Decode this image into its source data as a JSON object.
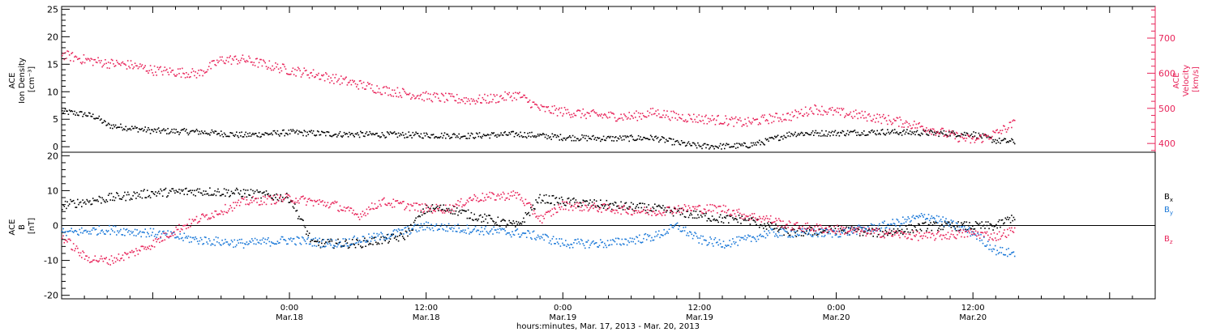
{
  "x_title": "hours:minutes, Mar. 17, 2013 - Mar. 20, 2013",
  "x_ticks": [
    {
      "time": "0:00",
      "date": "Mar.18",
      "hour": 24
    },
    {
      "time": "12:00",
      "date": "Mar.18",
      "hour": 36
    },
    {
      "time": "0:00",
      "date": "Mar.19",
      "hour": 48
    },
    {
      "time": "12:00",
      "date": "Mar.19",
      "hour": 60
    },
    {
      "time": "0:00",
      "date": "Mar.20",
      "hour": 72
    },
    {
      "time": "12:00",
      "date": "Mar.20",
      "hour": 84
    }
  ],
  "colors": {
    "black": "#000000",
    "pink": "#e8245a",
    "blue": "#1a78d8"
  },
  "chart_data": [
    {
      "type": "scatter",
      "panel": "top",
      "xlim_hours": [
        4,
        100
      ],
      "data_end_hour": 87.7,
      "left_axis": {
        "label_lines": [
          "ACE",
          "Ion Density",
          "[cm⁻³]"
        ],
        "ylim": [
          -1,
          25.5
        ],
        "ticks": [
          "0",
          "5",
          "10",
          "15",
          "20",
          "25"
        ],
        "color": "#000000"
      },
      "right_axis": {
        "label_lines": [
          "ACE",
          "Velocity",
          "[km/s]"
        ],
        "ylim": [
          375,
          790
        ],
        "ticks": [
          "400",
          "500",
          "600",
          "700"
        ],
        "color": "#e8245a"
      },
      "series": [
        {
          "axis": "left",
          "color": "#000000",
          "hours": [
            4,
            6,
            7,
            8,
            10,
            12,
            16,
            20,
            24,
            28,
            32,
            36,
            40,
            44,
            48,
            52,
            56,
            58,
            60,
            62,
            64,
            65.5,
            68,
            72,
            76,
            80,
            84,
            86,
            87.7
          ],
          "values": [
            6.5,
            6,
            5.5,
            4,
            3.5,
            3,
            2.8,
            2.2,
            2.7,
            2.4,
            2.3,
            2.2,
            2.1,
            2.4,
            1.8,
            1.6,
            1.7,
            0.8,
            0.2,
            0.2,
            0.3,
            0.9,
            2.5,
            2.6,
            2.8,
            2.6,
            2.4,
            1.2,
            1.0
          ]
        },
        {
          "axis": "right",
          "color": "#e8245a",
          "hours": [
            4,
            6,
            8,
            10,
            12,
            14,
            16,
            18,
            20,
            22,
            24,
            26,
            28,
            30,
            32,
            34,
            36,
            38,
            40,
            42,
            44,
            46,
            48,
            50,
            52,
            54,
            56,
            58,
            60,
            62,
            64,
            66,
            68,
            70,
            72,
            74,
            76,
            78,
            80,
            82,
            84,
            86,
            87.7
          ],
          "values": [
            655,
            640,
            630,
            625,
            610,
            605,
            600,
            640,
            640,
            625,
            610,
            600,
            585,
            570,
            555,
            545,
            535,
            530,
            525,
            530,
            540,
            500,
            492,
            485,
            480,
            478,
            490,
            478,
            472,
            468,
            460,
            472,
            480,
            500,
            490,
            482,
            472,
            460,
            445,
            425,
            410,
            430,
            460
          ]
        }
      ]
    },
    {
      "type": "scatter",
      "panel": "bottom",
      "xlim_hours": [
        4,
        100
      ],
      "data_end_hour": 87.7,
      "y_axis": {
        "label_lines": [
          "ACE",
          "B",
          "[nT]"
        ],
        "ylim": [
          -21,
          21
        ],
        "ticks": [
          "-20",
          "-10",
          "0",
          "10",
          "20"
        ]
      },
      "series": [
        {
          "name": "Bx",
          "color": "#000000",
          "hours": [
            4,
            8,
            12,
            16,
            20,
            24,
            26,
            30,
            34,
            36,
            38,
            40,
            44,
            46,
            48,
            52,
            56,
            58,
            60,
            62,
            64,
            66,
            68,
            72,
            76,
            80,
            84,
            86,
            87.7
          ],
          "values": [
            6,
            8,
            9.5,
            10,
            9.5,
            8,
            -5,
            -5,
            -3,
            5,
            5,
            3,
            0,
            8,
            7,
            6,
            5,
            4,
            3,
            2,
            2,
            0,
            -2,
            -1,
            -2,
            0,
            0,
            0,
            3
          ]
        },
        {
          "name": "By",
          "color": "#1a78d8",
          "hours": [
            4,
            8,
            12,
            16,
            20,
            24,
            28,
            32,
            36,
            40,
            44,
            46,
            48,
            52,
            56,
            58,
            60,
            62,
            64,
            66,
            68,
            72,
            76,
            80,
            84,
            86,
            87.7
          ],
          "values": [
            -2,
            -1,
            -2,
            -4,
            -5,
            -4,
            -5,
            -3,
            0,
            -1,
            -2,
            -3,
            -5,
            -5,
            -3,
            0,
            -4,
            -5,
            -4,
            -2,
            -2,
            -2,
            0,
            3,
            -2,
            -7,
            -8
          ]
        },
        {
          "name": "Bz",
          "color": "#e8245a",
          "hours": [
            4,
            6,
            8,
            10,
            12,
            14,
            16,
            20,
            24,
            28,
            30,
            32,
            34,
            36,
            38,
            40,
            44,
            46,
            48,
            52,
            56,
            58,
            60,
            62,
            64,
            66,
            68,
            72,
            76,
            80,
            84,
            86,
            87.7
          ],
          "values": [
            -3,
            -9,
            -10,
            -8,
            -5,
            -1,
            2,
            7,
            8,
            6,
            3,
            7,
            6,
            5,
            5,
            8,
            9,
            2,
            6,
            5,
            4,
            5,
            5,
            5,
            3,
            2,
            0,
            -1,
            -2,
            -3,
            -2,
            -3,
            -1
          ]
        }
      ]
    }
  ],
  "legend": [
    {
      "letter": "B",
      "sub": "x",
      "color": "#000000"
    },
    {
      "letter": "B",
      "sub": "y",
      "color": "#1a78d8"
    },
    {
      "letter": "B",
      "sub": "z",
      "color": "#e8245a"
    }
  ]
}
